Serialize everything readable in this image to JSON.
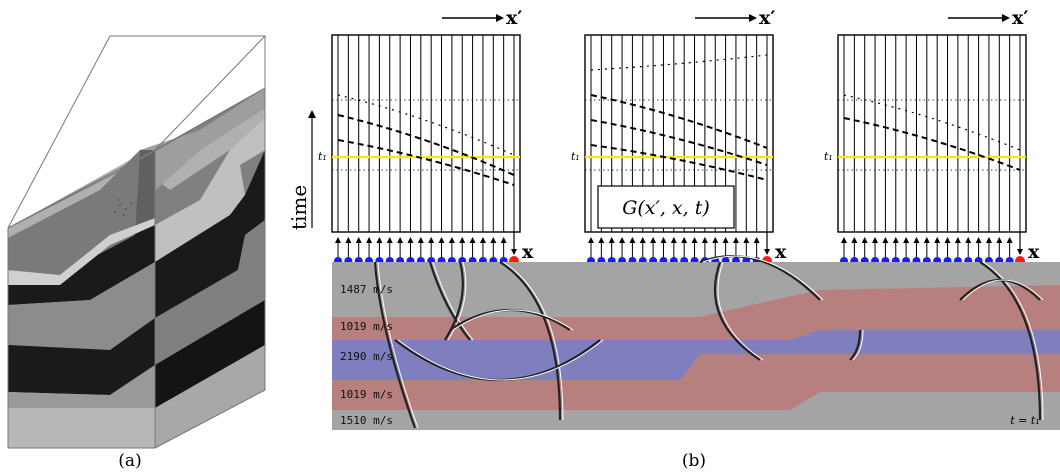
{
  "panel_a": {
    "caption": "(a)"
  },
  "panel_b": {
    "caption": "(b)",
    "time_axis_label": "time",
    "x_prime_label": "x′",
    "x_label": "x",
    "t1_label": "t₁",
    "green_function_label": "G(x′, x, t)",
    "time_marker": "t = t₁",
    "layers": [
      {
        "velocity": "1487 m/s",
        "color": "#a8a8a8"
      },
      {
        "velocity": "1019 m/s",
        "color": "#b87f7f"
      },
      {
        "velocity": "2190 m/s",
        "color": "#7f7fbf"
      },
      {
        "velocity": "1019 m/s",
        "color": "#b87f7f"
      },
      {
        "velocity": "1510 m/s",
        "color": "#a8a8a8"
      }
    ],
    "colors": {
      "receiver": "#1a1aff",
      "source": "#ff1a1a",
      "t1_line": "#ffe600"
    }
  }
}
